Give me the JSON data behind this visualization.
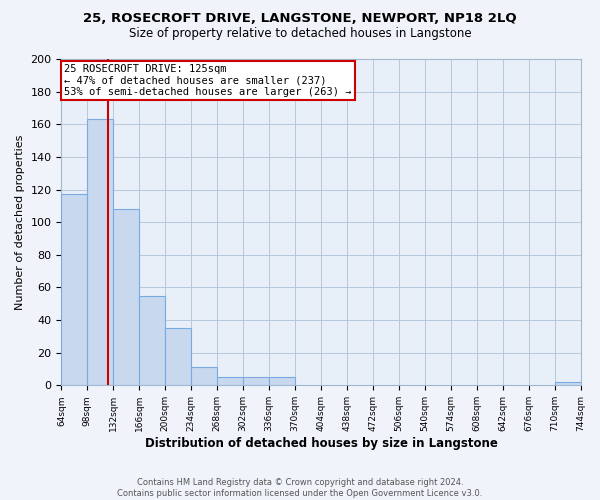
{
  "title": "25, ROSECROFT DRIVE, LANGSTONE, NEWPORT, NP18 2LQ",
  "subtitle": "Size of property relative to detached houses in Langstone",
  "xlabel": "Distribution of detached houses by size in Langstone",
  "ylabel": "Number of detached properties",
  "bar_edges": [
    64,
    98,
    132,
    166,
    200,
    234,
    268,
    302,
    336,
    370,
    404,
    438,
    472,
    506,
    540,
    574,
    608,
    642,
    676,
    710,
    744
  ],
  "bar_heights": [
    117,
    163,
    108,
    55,
    35,
    11,
    5,
    5,
    5,
    0,
    0,
    0,
    0,
    0,
    0,
    0,
    0,
    0,
    0,
    2,
    0
  ],
  "bar_color": "#c8d8ee",
  "bar_edge_color": "#7aabe0",
  "vline_x": 125,
  "vline_color": "#cc0000",
  "annotation_title": "25 ROSECROFT DRIVE: 125sqm",
  "annotation_line1": "← 47% of detached houses are smaller (237)",
  "annotation_line2": "53% of semi-detached houses are larger (263) →",
  "annotation_box_color": "#ffffff",
  "annotation_box_edge": "#cc0000",
  "ylim": [
    0,
    200
  ],
  "yticks": [
    0,
    20,
    40,
    60,
    80,
    100,
    120,
    140,
    160,
    180,
    200
  ],
  "tick_labels": [
    "64sqm",
    "98sqm",
    "132sqm",
    "166sqm",
    "200sqm",
    "234sqm",
    "268sqm",
    "302sqm",
    "336sqm",
    "370sqm",
    "404sqm",
    "438sqm",
    "472sqm",
    "506sqm",
    "540sqm",
    "574sqm",
    "608sqm",
    "642sqm",
    "676sqm",
    "710sqm",
    "744sqm"
  ],
  "footer1": "Contains HM Land Registry data © Crown copyright and database right 2024.",
  "footer2": "Contains public sector information licensed under the Open Government Licence v3.0.",
  "bg_color": "#f0f4fa",
  "plot_bg_color": "#e8eff8",
  "grid_color": "#b8c8dc"
}
